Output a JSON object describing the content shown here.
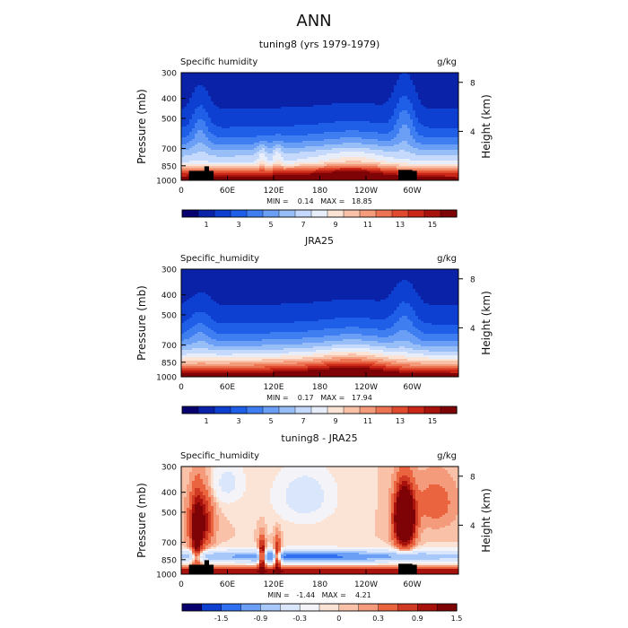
{
  "figure": {
    "title": "ANN"
  },
  "chart_data": [
    {
      "type": "heatmap",
      "title": "tuning8 (yrs 1979-1979)",
      "variable_label": "Specific humidity",
      "units": "g/kg",
      "ylabel": "Pressure (mb)",
      "ylabel_right": "Height (km)",
      "y_ticks": [
        "300",
        "400",
        "500",
        "700",
        "850",
        "1000"
      ],
      "y_tick_values": [
        300,
        400,
        500,
        700,
        850,
        1000
      ],
      "ylim": [
        1000,
        300
      ],
      "x_ticks": [
        "0",
        "60E",
        "120E",
        "180",
        "120W",
        "60W"
      ],
      "x_tick_values": [
        0,
        60,
        120,
        180,
        240,
        300
      ],
      "xlim": [
        0,
        360
      ],
      "height_ticks": [
        "8",
        "4"
      ],
      "height_tick_values": [
        8,
        4
      ],
      "stats": "MIN =    0.14   MAX =   18.85",
      "colorbar_labels": [
        "1",
        "3",
        "5",
        "7",
        "9",
        "11",
        "13",
        "15"
      ],
      "colorbar_levels": [
        0,
        1,
        2,
        3,
        4,
        5,
        6,
        7,
        8,
        9,
        10,
        11,
        12,
        13,
        14,
        15,
        16
      ],
      "field": "tuning"
    },
    {
      "type": "heatmap",
      "title": "JRA25",
      "variable_label": "Specific_humidity",
      "units": "g/kg",
      "ylabel": "Pressure (mb)",
      "ylabel_right": "Height (km)",
      "y_ticks": [
        "300",
        "400",
        "500",
        "700",
        "850",
        "1000"
      ],
      "y_tick_values": [
        300,
        400,
        500,
        700,
        850,
        1000
      ],
      "ylim": [
        1000,
        300
      ],
      "x_ticks": [
        "0",
        "60E",
        "120E",
        "180",
        "120W",
        "60W"
      ],
      "x_tick_values": [
        0,
        60,
        120,
        180,
        240,
        300
      ],
      "xlim": [
        0,
        360
      ],
      "height_ticks": [
        "8",
        "4"
      ],
      "height_tick_values": [
        8,
        4
      ],
      "stats": "MIN =    0.17   MAX =   17.94",
      "colorbar_labels": [
        "1",
        "3",
        "5",
        "7",
        "9",
        "11",
        "13",
        "15"
      ],
      "colorbar_levels": [
        0,
        1,
        2,
        3,
        4,
        5,
        6,
        7,
        8,
        9,
        10,
        11,
        12,
        13,
        14,
        15,
        16
      ],
      "field": "jra"
    },
    {
      "type": "heatmap",
      "title": "tuning8 - JRA25",
      "variable_label": "Specific_humidity",
      "units": "g/kg",
      "ylabel": "Pressure (mb)",
      "ylabel_right": "Height (km)",
      "y_ticks": [
        "300",
        "400",
        "500",
        "700",
        "850",
        "1000"
      ],
      "y_tick_values": [
        300,
        400,
        500,
        700,
        850,
        1000
      ],
      "ylim": [
        1000,
        300
      ],
      "x_ticks": [
        "0",
        "60E",
        "120E",
        "180",
        "120W",
        "60W"
      ],
      "x_tick_values": [
        0,
        60,
        120,
        180,
        240,
        300
      ],
      "xlim": [
        0,
        360
      ],
      "height_ticks": [
        "8",
        "4"
      ],
      "height_tick_values": [
        8,
        4
      ],
      "stats": "MIN =   -1.44   MAX =    4.21",
      "colorbar_labels": [
        "-1.5",
        "-0.9",
        "-0.3",
        "0",
        "0.3",
        "0.9",
        "1.5"
      ],
      "colorbar_levels": [
        -1.8,
        -1.5,
        -1.2,
        -0.9,
        -0.6,
        -0.3,
        -0.1,
        0,
        0.1,
        0.3,
        0.6,
        0.9,
        1.2,
        1.5,
        1.8
      ],
      "field": "diff"
    }
  ],
  "colors": {
    "palette": [
      "#08006e",
      "#0a22a8",
      "#0d3fd0",
      "#1f5ee6",
      "#3e7ef0",
      "#6a9ff5",
      "#98bef8",
      "#c4d9fb",
      "#e7eefa",
      "#fbe3d6",
      "#f8c1a8",
      "#f39b7a",
      "#ec7452",
      "#e04a2f",
      "#c92819",
      "#a7120c",
      "#7e0307"
    ],
    "diff_palette": [
      "#08006e",
      "#0d3fd0",
      "#2f6ff0",
      "#6a9ff5",
      "#a9c8fa",
      "#d9e6fb",
      "#f4f4f8",
      "#fbe3d6",
      "#f8c1a8",
      "#f39b7a",
      "#e9643f",
      "#d03a22",
      "#a7120c",
      "#7e0307"
    ],
    "topography": "#000000"
  }
}
